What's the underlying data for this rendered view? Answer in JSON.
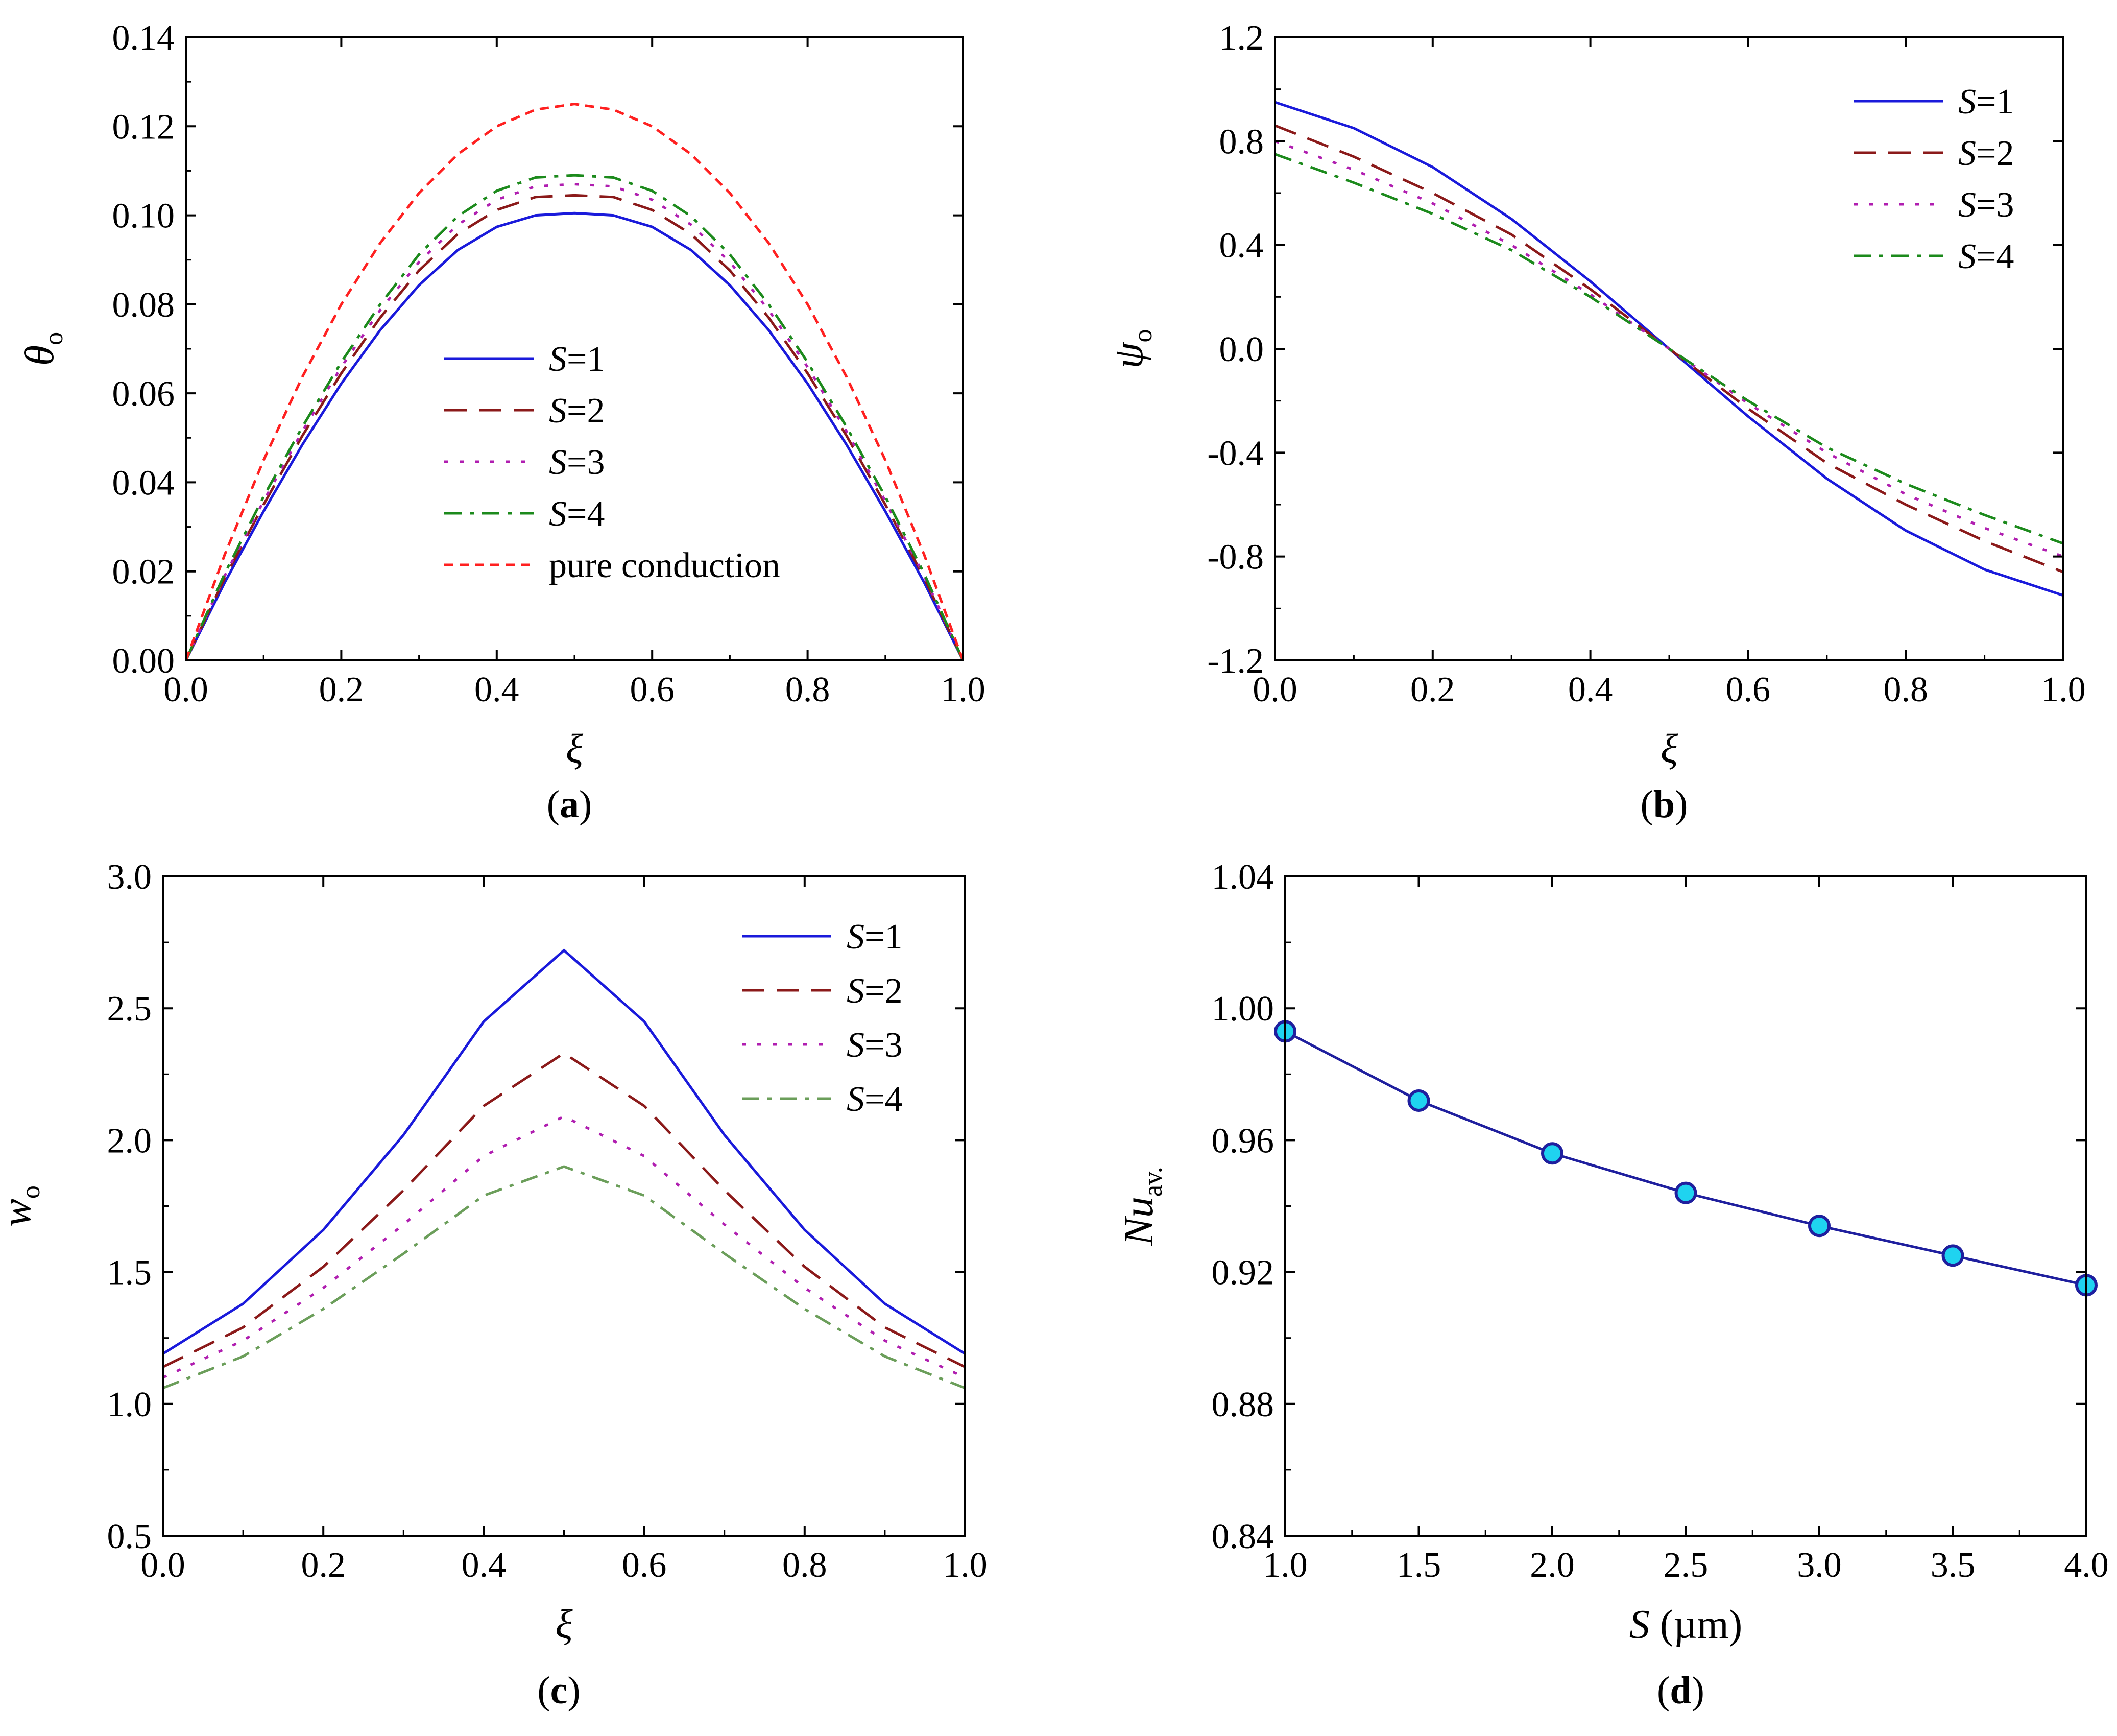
{
  "colors": {
    "s1": "#1a1adb",
    "s2": "#8b1a1a",
    "s3": "#b01eb0",
    "s4a": "#1c8a1c",
    "s4c": "#6b9e5a",
    "pure": "#ff2020",
    "nu_line": "#1f1f9e",
    "nu_marker": "#1fd3f0",
    "axis": "#000000"
  },
  "chart_data": [
    {
      "id": "a",
      "type": "line",
      "caption_letter": "a",
      "caption_open": "(",
      "caption_close": ")",
      "xlabel": "ξ",
      "ylabel": "θ",
      "ylabel_sub": "o",
      "xlim": [
        0,
        1
      ],
      "ylim": [
        0,
        0.14
      ],
      "xticks": [
        0.0,
        0.2,
        0.4,
        0.6,
        0.8,
        1.0
      ],
      "xtick_labels": [
        "0.0",
        "0.2",
        "0.4",
        "0.6",
        "0.8",
        "1.0"
      ],
      "yticks": [
        0,
        0.02,
        0.04,
        0.06,
        0.08,
        0.1,
        0.12,
        0.14
      ],
      "ytick_labels": [
        "0.00",
        "0.02",
        "0.04",
        "0.06",
        "0.08",
        "0.10",
        "0.12",
        "0.14"
      ],
      "legend_position": "center",
      "x": [
        0,
        0.05,
        0.1,
        0.15,
        0.2,
        0.25,
        0.3,
        0.35,
        0.4,
        0.45,
        0.5,
        0.55,
        0.6,
        0.65,
        0.7,
        0.75,
        0.8,
        0.85,
        0.9,
        0.95,
        1.0
      ],
      "series": [
        {
          "name": "S=1",
          "label_italic": "S",
          "label_rest": "=1",
          "color_key": "s1",
          "dash": "solid",
          "values": [
            0,
            0.0175,
            0.0335,
            0.0485,
            0.0622,
            0.0742,
            0.0843,
            0.0922,
            0.0974,
            0.1,
            0.1005,
            0.1,
            0.0974,
            0.0922,
            0.0843,
            0.0742,
            0.0622,
            0.0485,
            0.0335,
            0.0175,
            0
          ]
        },
        {
          "name": "S=2",
          "label_italic": "S",
          "label_rest": "=2",
          "color_key": "s2",
          "dash": "dash",
          "values": [
            0,
            0.0185,
            0.035,
            0.0505,
            0.0645,
            0.077,
            0.0876,
            0.0958,
            0.1012,
            0.1041,
            0.1045,
            0.1041,
            0.1012,
            0.0958,
            0.0876,
            0.077,
            0.0645,
            0.0505,
            0.035,
            0.0185,
            0
          ]
        },
        {
          "name": "S=3",
          "label_italic": "S",
          "label_rest": "=3",
          "color_key": "s3",
          "dash": "dot",
          "values": [
            0,
            0.019,
            0.0358,
            0.0515,
            0.0659,
            0.0787,
            0.0895,
            0.0979,
            0.1035,
            0.1065,
            0.107,
            0.1065,
            0.1035,
            0.0979,
            0.0895,
            0.0787,
            0.0659,
            0.0515,
            0.0358,
            0.019,
            0
          ]
        },
        {
          "name": "S=4",
          "label_italic": "S",
          "label_rest": "=4",
          "color_key": "s4a",
          "dash": "dashdot",
          "values": [
            0,
            0.0195,
            0.0368,
            0.0525,
            0.067,
            0.08,
            0.0912,
            0.0998,
            0.1055,
            0.1085,
            0.109,
            0.1085,
            0.1055,
            0.0998,
            0.0912,
            0.08,
            0.067,
            0.0525,
            0.0368,
            0.0195,
            0
          ]
        },
        {
          "name": "pure conduction",
          "label_italic": "",
          "label_rest": "pure conduction",
          "color_key": "pure",
          "dash": "shortdash",
          "values": [
            0,
            0.02375,
            0.045,
            0.06375,
            0.08,
            0.09375,
            0.105,
            0.11375,
            0.12,
            0.12375,
            0.125,
            0.12375,
            0.12,
            0.11375,
            0.105,
            0.09375,
            0.08,
            0.06375,
            0.045,
            0.02375,
            0
          ]
        }
      ]
    },
    {
      "id": "b",
      "type": "line",
      "caption_letter": "b",
      "caption_open": "(",
      "caption_close": ")",
      "xlabel": "ξ",
      "ylabel": "ψ",
      "ylabel_sub": "o",
      "xlim": [
        0,
        1
      ],
      "ylim": [
        -1.2,
        1.2
      ],
      "xticks": [
        0.0,
        0.2,
        0.4,
        0.6,
        0.8,
        1.0
      ],
      "xtick_labels": [
        "0.0",
        "0.2",
        "0.4",
        "0.6",
        "0.8",
        "1.0"
      ],
      "yticks": [
        -1.2,
        -0.8,
        -0.4,
        0.0,
        0.4,
        0.8,
        1.2
      ],
      "ytick_labels": [
        "-1.2",
        "-0.8",
        "-0.4",
        "0.0",
        "0.4",
        "0.8",
        "1.2"
      ],
      "legend_position": "top-right",
      "x": [
        0,
        0.1,
        0.2,
        0.3,
        0.4,
        0.5,
        0.6,
        0.7,
        0.8,
        0.9,
        1.0
      ],
      "series": [
        {
          "name": "S=1",
          "label_italic": "S",
          "label_rest": "=1",
          "color_key": "s1",
          "dash": "solid",
          "values": [
            0.95,
            0.85,
            0.7,
            0.5,
            0.26,
            0.0,
            -0.26,
            -0.5,
            -0.7,
            -0.85,
            -0.95
          ]
        },
        {
          "name": "S=2",
          "label_italic": "S",
          "label_rest": "=2",
          "color_key": "s2",
          "dash": "dash",
          "values": [
            0.86,
            0.74,
            0.6,
            0.44,
            0.23,
            0.0,
            -0.23,
            -0.44,
            -0.6,
            -0.74,
            -0.86
          ]
        },
        {
          "name": "S=3",
          "label_italic": "S",
          "label_rest": "=3",
          "color_key": "s3",
          "dash": "dot",
          "values": [
            0.8,
            0.69,
            0.56,
            0.4,
            0.21,
            0.0,
            -0.21,
            -0.4,
            -0.56,
            -0.69,
            -0.8
          ]
        },
        {
          "name": "S=4",
          "label_italic": "S",
          "label_rest": "=4",
          "color_key": "s4a",
          "dash": "dashdot",
          "values": [
            0.75,
            0.64,
            0.52,
            0.38,
            0.2,
            0.0,
            -0.2,
            -0.38,
            -0.52,
            -0.64,
            -0.75
          ]
        }
      ]
    },
    {
      "id": "c",
      "type": "line",
      "caption_letter": "c",
      "caption_open": "(",
      "caption_close": ")",
      "xlabel": "ξ",
      "ylabel": "w",
      "ylabel_sub": "o",
      "xlim": [
        0,
        1
      ],
      "ylim": [
        0.5,
        3.0
      ],
      "xticks": [
        0.0,
        0.2,
        0.4,
        0.6,
        0.8,
        1.0
      ],
      "xtick_labels": [
        "0.0",
        "0.2",
        "0.4",
        "0.6",
        "0.8",
        "1.0"
      ],
      "yticks": [
        0.5,
        1.0,
        1.5,
        2.0,
        2.5,
        3.0
      ],
      "ytick_labels": [
        "0.5",
        "1.0",
        "1.5",
        "2.0",
        "2.5",
        "3.0"
      ],
      "legend_position": "top-right",
      "x": [
        0,
        0.1,
        0.2,
        0.3,
        0.4,
        0.5,
        0.6,
        0.7,
        0.8,
        0.9,
        1.0
      ],
      "series": [
        {
          "name": "S=1",
          "label_italic": "S",
          "label_rest": "=1",
          "color_key": "s1",
          "dash": "solid",
          "values": [
            1.19,
            1.38,
            1.66,
            2.02,
            2.45,
            2.72,
            2.45,
            2.02,
            1.66,
            1.38,
            1.19
          ]
        },
        {
          "name": "S=2",
          "label_italic": "S",
          "label_rest": "=2",
          "color_key": "s2",
          "dash": "dash",
          "values": [
            1.14,
            1.29,
            1.52,
            1.81,
            2.13,
            2.33,
            2.13,
            1.81,
            1.52,
            1.29,
            1.14
          ]
        },
        {
          "name": "S=3",
          "label_italic": "S",
          "label_rest": "=3",
          "color_key": "s3",
          "dash": "dot",
          "values": [
            1.1,
            1.24,
            1.44,
            1.68,
            1.94,
            2.09,
            1.94,
            1.68,
            1.44,
            1.24,
            1.1
          ]
        },
        {
          "name": "S=4",
          "label_italic": "S",
          "label_rest": "=4",
          "color_key": "s4c",
          "dash": "dashdot",
          "values": [
            1.06,
            1.18,
            1.36,
            1.57,
            1.79,
            1.9,
            1.79,
            1.57,
            1.36,
            1.18,
            1.06
          ]
        }
      ]
    },
    {
      "id": "d",
      "type": "line",
      "caption_letter": "d",
      "caption_open": "(",
      "caption_close": ")",
      "xlabel": "S",
      "xlabel_rest": " (µm)",
      "ylabel": "Nu",
      "ylabel_sub": "av.",
      "xlim": [
        1.0,
        4.0
      ],
      "ylim": [
        0.84,
        1.04
      ],
      "xticks": [
        1.0,
        1.5,
        2.0,
        2.5,
        3.0,
        3.5,
        4.0
      ],
      "xtick_labels": [
        "1.0",
        "1.5",
        "2.0",
        "2.5",
        "3.0",
        "3.5",
        "4.0"
      ],
      "yticks": [
        0.84,
        0.88,
        0.92,
        0.96,
        1.0,
        1.04
      ],
      "ytick_labels": [
        "0.84",
        "0.88",
        "0.92",
        "0.96",
        "1.00",
        "1.04"
      ],
      "legend_position": "none",
      "x": [
        1.0,
        1.5,
        2.0,
        2.5,
        3.0,
        3.5,
        4.0
      ],
      "series": [
        {
          "name": "Nu_av",
          "color_key": "nu_line",
          "marker_color_key": "nu_marker",
          "dash": "solid",
          "markers": true,
          "values": [
            0.993,
            0.972,
            0.956,
            0.944,
            0.934,
            0.925,
            0.916
          ]
        }
      ]
    }
  ]
}
